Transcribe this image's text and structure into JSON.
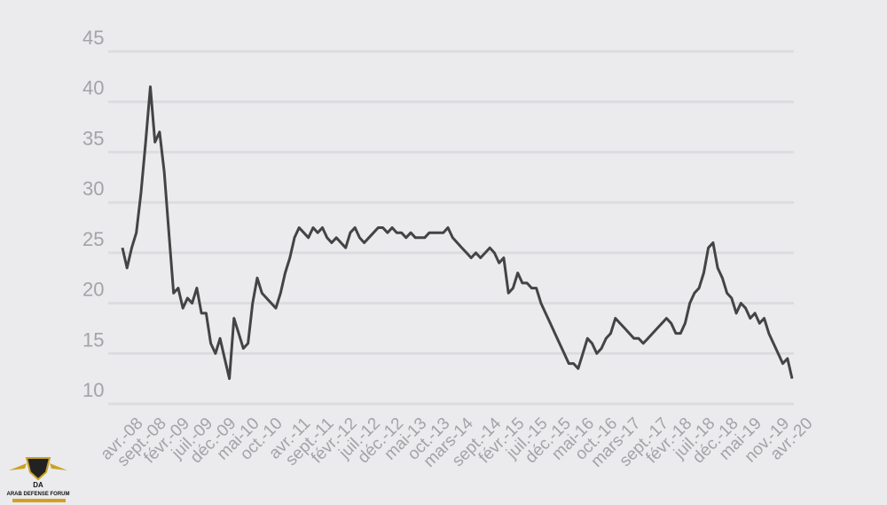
{
  "chart_data": {
    "type": "line",
    "categories": [
      "avr.-08",
      null,
      null,
      null,
      null,
      "sept.-08",
      null,
      null,
      null,
      null,
      "févr.-09",
      null,
      null,
      null,
      null,
      "juil.-09",
      null,
      null,
      null,
      null,
      "déc.-09",
      null,
      null,
      null,
      null,
      "mai-10",
      null,
      null,
      null,
      null,
      "oct.-10",
      null,
      null,
      null,
      null,
      null,
      "avr.-11",
      null,
      null,
      null,
      null,
      "sept.-11",
      null,
      null,
      null,
      null,
      "févr.-12",
      null,
      null,
      null,
      null,
      "juil.-12",
      null,
      null,
      null,
      null,
      "déc.-12",
      null,
      null,
      null,
      null,
      "mai-13",
      null,
      null,
      null,
      null,
      "oct.-13",
      null,
      null,
      null,
      null,
      "mars-14",
      null,
      null,
      null,
      null,
      null,
      "sept.-14",
      null,
      null,
      null,
      null,
      "févr.-15",
      null,
      null,
      null,
      null,
      "juil.-15",
      null,
      null,
      null,
      null,
      "déc.-15",
      null,
      null,
      null,
      null,
      "mai-16",
      null,
      null,
      null,
      null,
      "oct.-16",
      null,
      null,
      null,
      null,
      "mars-17",
      null,
      null,
      null,
      null,
      null,
      "sept.-17",
      null,
      null,
      null,
      null,
      "févr.-18",
      null,
      null,
      null,
      null,
      "juil.-18",
      null,
      null,
      null,
      null,
      "déc.-18",
      null,
      null,
      null,
      null,
      "mai-19",
      null,
      null,
      null,
      null,
      null,
      "nov.-19",
      null,
      null,
      null,
      null,
      "avr.-20"
    ],
    "values": [
      25.5,
      23.5,
      25.5,
      27,
      31,
      36,
      41.5,
      36,
      37,
      33,
      27,
      21,
      21.5,
      19.5,
      20.5,
      20,
      21.5,
      19,
      19,
      16,
      15,
      16.5,
      14.5,
      12.5,
      18.5,
      17,
      15.5,
      16,
      20,
      22.5,
      21,
      20.5,
      20,
      19.5,
      21,
      23,
      24.5,
      26.5,
      27.5,
      27,
      26.5,
      27.5,
      27,
      27.5,
      26.5,
      26,
      26.5,
      26,
      25.5,
      27,
      27.5,
      26.5,
      26,
      26.5,
      27,
      27.5,
      27.5,
      27,
      27.5,
      27,
      27,
      26.5,
      27,
      26.5,
      26.5,
      26.5,
      27,
      27,
      27,
      27,
      27.5,
      26.5,
      26,
      25.5,
      25,
      24.5,
      25,
      24.5,
      25,
      25.5,
      25,
      24,
      24.5,
      21,
      21.5,
      23,
      22,
      22,
      21.5,
      21.5,
      20,
      19,
      18,
      17,
      16,
      15,
      14,
      14,
      13.5,
      15,
      16.5,
      16,
      15,
      15.5,
      16.5,
      17,
      18.5,
      18,
      17.5,
      17,
      16.5,
      16.5,
      16,
      16.5,
      17,
      17.5,
      18,
      18.5,
      18,
      17,
      17,
      18,
      20,
      21,
      21.5,
      23,
      25.5,
      26,
      23.5,
      22.5,
      21,
      20.5,
      19,
      20,
      19.5,
      18.5,
      19,
      18,
      18.5,
      17,
      16,
      15,
      14,
      14.5,
      12.5
    ],
    "color": "#444444",
    "ylim": [
      10,
      45
    ],
    "yticks": [
      10,
      15,
      20,
      25,
      30,
      35,
      40,
      45
    ],
    "grid": true
  },
  "watermark": {
    "logo": "DA",
    "text": "ARAB DEFENSE FORUM"
  }
}
